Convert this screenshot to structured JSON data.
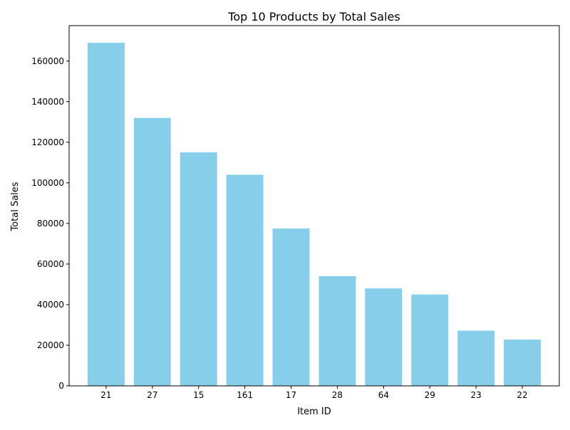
{
  "chart_data": {
    "type": "bar",
    "title": "Top 10 Products by Total Sales",
    "xlabel": "Item ID",
    "ylabel": "Total Sales",
    "categories": [
      "21",
      "27",
      "15",
      "161",
      "17",
      "28",
      "64",
      "29",
      "23",
      "22"
    ],
    "values": [
      169000,
      132000,
      115000,
      104000,
      77500,
      54000,
      48000,
      45000,
      27200,
      22800
    ],
    "ylim": [
      0,
      177450
    ],
    "yticks": [
      0,
      20000,
      40000,
      60000,
      80000,
      100000,
      120000,
      140000,
      160000
    ],
    "grid": false,
    "legend": "none",
    "bar_color": "#87CEEB"
  }
}
